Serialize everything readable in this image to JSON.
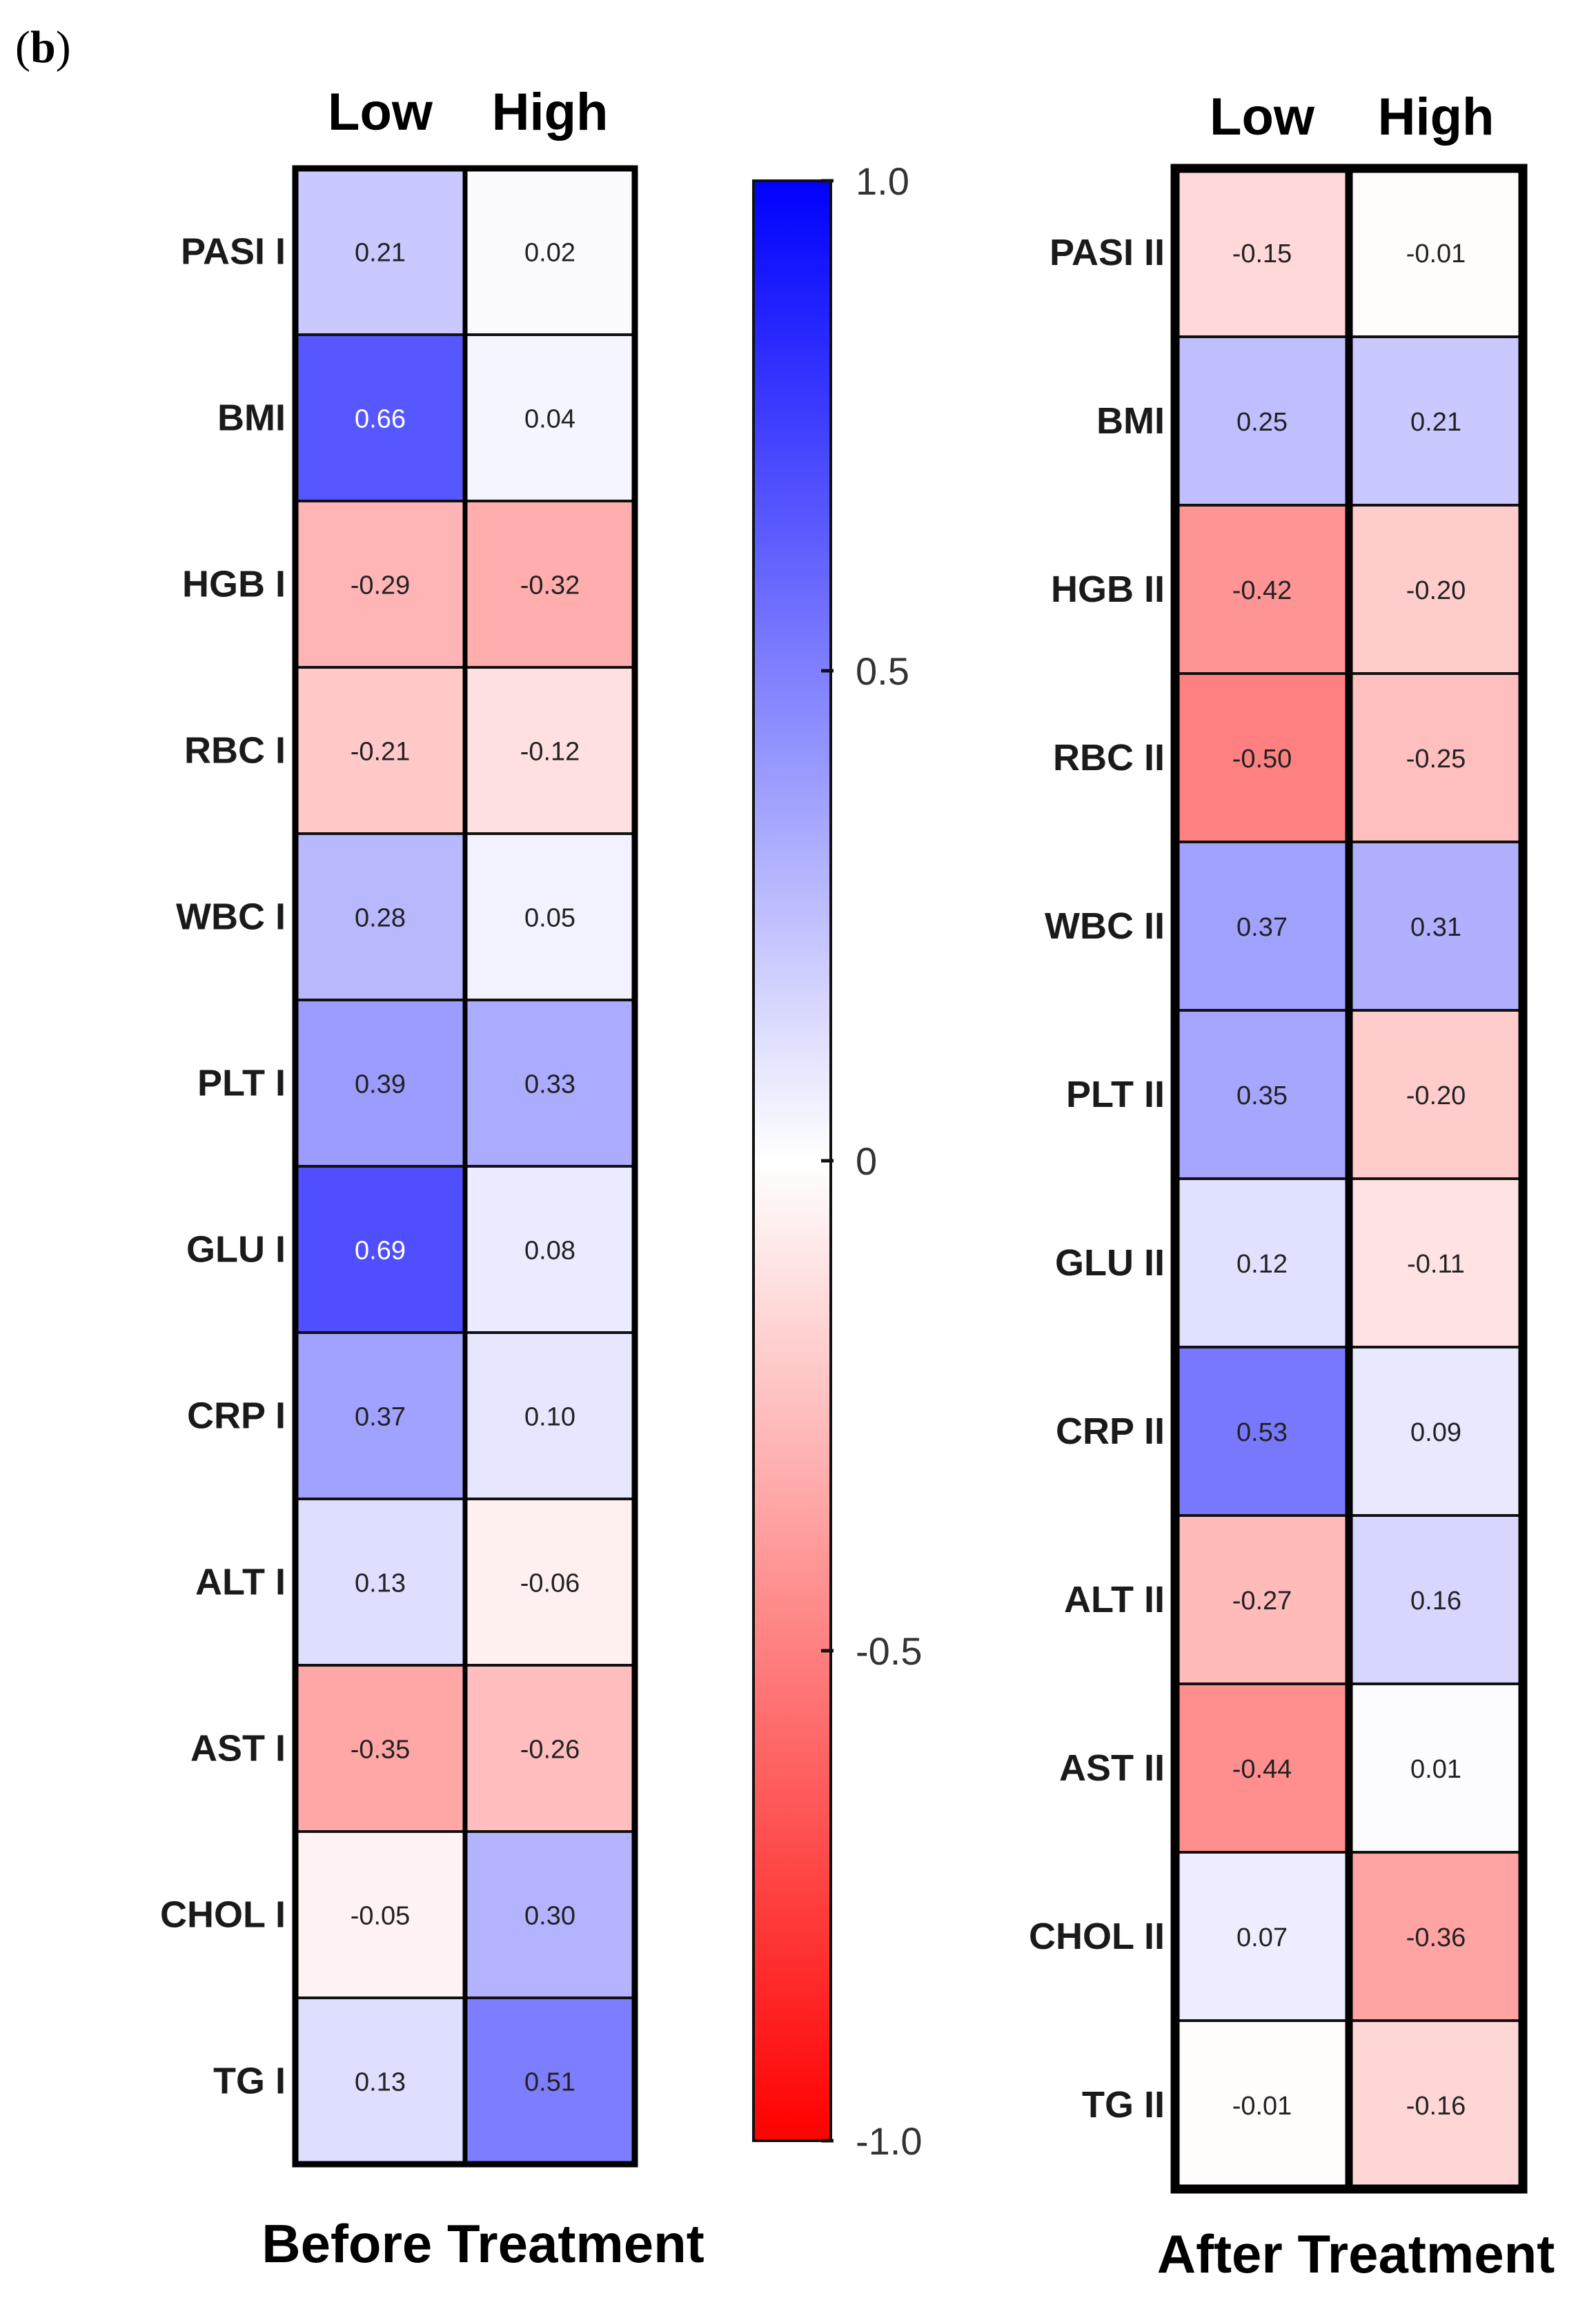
{
  "panel_label_open": "(",
  "panel_label_letter": "b",
  "panel_label_close": ")",
  "colorscale": {
    "min_color": "#ff0000",
    "mid_color": "#ffffff",
    "max_color": "#0000ff",
    "ticks": [
      {
        "value": 1.0,
        "label": "1.0"
      },
      {
        "value": 0.5,
        "label": "0.5"
      },
      {
        "value": 0,
        "label": "0"
      },
      {
        "value": -0.5,
        "label": "-0.5"
      },
      {
        "value": -1.0,
        "label": "-1.0"
      }
    ]
  },
  "chart_data": [
    {
      "type": "heatmap",
      "title": "Before Treatment",
      "columns": [
        "Low",
        "High"
      ],
      "rows": [
        "PASI I",
        "BMI",
        "HGB I",
        "RBC I",
        "WBC I",
        "PLT I",
        "GLU I",
        "CRP I",
        "ALT I",
        "AST I",
        "CHOL I",
        "TG I"
      ],
      "values": [
        [
          0.21,
          0.02
        ],
        [
          0.66,
          0.04
        ],
        [
          -0.29,
          -0.32
        ],
        [
          -0.21,
          -0.12
        ],
        [
          0.28,
          0.05
        ],
        [
          0.39,
          0.33
        ],
        [
          0.69,
          0.08
        ],
        [
          0.37,
          0.1
        ],
        [
          0.13,
          -0.06
        ],
        [
          -0.35,
          -0.26
        ],
        [
          -0.05,
          0.3
        ],
        [
          0.13,
          0.51
        ]
      ],
      "labels": [
        [
          "0.21",
          "0.02"
        ],
        [
          "0.66",
          "0.04"
        ],
        [
          "-0.29",
          "-0.32"
        ],
        [
          "-0.21",
          "-0.12"
        ],
        [
          "0.28",
          "0.05"
        ],
        [
          "0.39",
          "0.33"
        ],
        [
          "0.69",
          "0.08"
        ],
        [
          "0.37",
          "0.10"
        ],
        [
          "0.13",
          "-0.06"
        ],
        [
          "-0.35",
          "-0.26"
        ],
        [
          "-0.05",
          "0.30"
        ],
        [
          "0.13",
          "0.51"
        ]
      ],
      "scale_range": [
        -1.0,
        1.0
      ]
    },
    {
      "type": "heatmap",
      "title": "After Treatment",
      "columns": [
        "Low",
        "High"
      ],
      "rows": [
        "PASI II",
        "BMI",
        "HGB II",
        "RBC II",
        "WBC II",
        "PLT II",
        "GLU II",
        "CRP II",
        "ALT II",
        "AST II",
        "CHOL II",
        "TG II"
      ],
      "values": [
        [
          -0.15,
          -0.01
        ],
        [
          0.25,
          0.21
        ],
        [
          -0.42,
          -0.2
        ],
        [
          -0.5,
          -0.25
        ],
        [
          0.37,
          0.31
        ],
        [
          0.35,
          -0.2
        ],
        [
          0.12,
          -0.11
        ],
        [
          0.53,
          0.09
        ],
        [
          -0.27,
          0.16
        ],
        [
          -0.44,
          0.01
        ],
        [
          0.07,
          -0.36
        ],
        [
          -0.01,
          -0.16
        ]
      ],
      "labels": [
        [
          "-0.15",
          "-0.01"
        ],
        [
          "0.25",
          "0.21"
        ],
        [
          "-0.42",
          "-0.20"
        ],
        [
          "-0.50",
          "-0.25"
        ],
        [
          "0.37",
          "0.31"
        ],
        [
          "0.35",
          "-0.20"
        ],
        [
          "0.12",
          "-0.11"
        ],
        [
          "0.53",
          "0.09"
        ],
        [
          "-0.27",
          "0.16"
        ],
        [
          "-0.44",
          "0.01"
        ],
        [
          "0.07",
          "-0.36"
        ],
        [
          "-0.01",
          "-0.16"
        ]
      ],
      "scale_range": [
        -1.0,
        1.0
      ]
    }
  ]
}
